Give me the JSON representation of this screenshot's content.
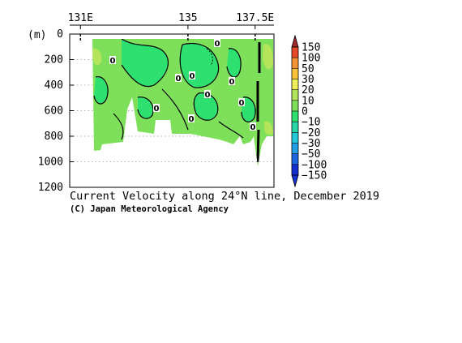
{
  "chart_data": {
    "type": "heatmap",
    "title": "Current Velocity along 24°N line, December 2019",
    "credit": "(C) Japan Meteorological Agency",
    "x_axis": {
      "ticks": [
        {
          "value": 131,
          "label": "131E"
        },
        {
          "value": 135,
          "label": "135"
        },
        {
          "value": 137.5,
          "label": "137.5E"
        }
      ],
      "range": [
        130.6,
        138.2
      ]
    },
    "y_axis": {
      "unit": "(m)",
      "ticks": [
        0,
        200,
        400,
        600,
        800,
        1000,
        1200
      ],
      "range": [
        0,
        1200
      ],
      "inverted": true
    },
    "colorbar": {
      "levels": [
        150,
        100,
        50,
        30,
        20,
        10,
        0,
        -10,
        -20,
        -30,
        -50,
        -100,
        -150
      ],
      "colors": {
        "above_150": "#a0282a",
        "100_150": "#e8482a",
        "50_100": "#f49334",
        "30_50": "#f7c23a",
        "20_30": "#eef05a",
        "10_20": "#b4e45a",
        "0_10": "#7ee05a",
        "m10_0": "#2ee070",
        "m20_m10": "#28d6a8",
        "m30_m20": "#24c8d8",
        "m50_m30": "#229ee6",
        "m100_m50": "#1e66e0",
        "below_m150": "#1430d0"
      }
    },
    "contour_labels": [
      "0",
      "0",
      "0",
      "0",
      "0",
      "0",
      "0",
      "0",
      "0",
      "0"
    ],
    "grid": "dotted-depth-lines"
  }
}
